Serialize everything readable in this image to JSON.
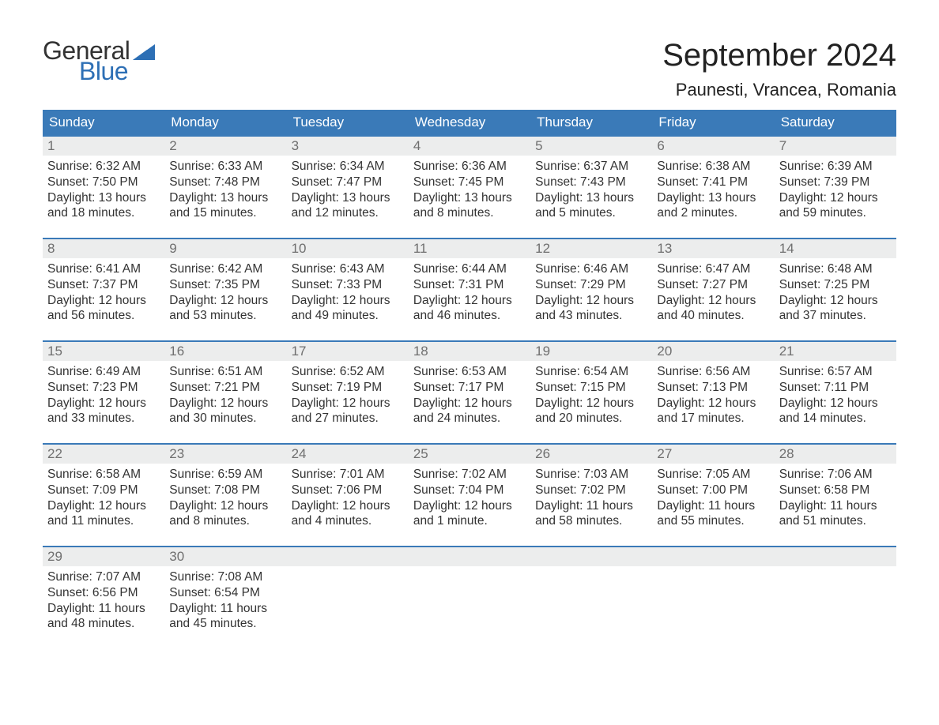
{
  "brand": {
    "general": "General",
    "blue": "Blue",
    "flag_color": "#2d6fb5"
  },
  "title": "September 2024",
  "location": "Paunesti, Vrancea, Romania",
  "colors": {
    "header_bg": "#3a7ab8",
    "header_text": "#ffffff",
    "daynum_bg": "#eceded",
    "daynum_text": "#6f6f6f",
    "body_text": "#333333",
    "row_border": "#3a7ab8",
    "page_bg": "#ffffff"
  },
  "weekdays": [
    "Sunday",
    "Monday",
    "Tuesday",
    "Wednesday",
    "Thursday",
    "Friday",
    "Saturday"
  ],
  "weeks": [
    [
      {
        "n": "1",
        "sunrise": "Sunrise: 6:32 AM",
        "sunset": "Sunset: 7:50 PM",
        "day1": "Daylight: 13 hours",
        "day2": "and 18 minutes."
      },
      {
        "n": "2",
        "sunrise": "Sunrise: 6:33 AM",
        "sunset": "Sunset: 7:48 PM",
        "day1": "Daylight: 13 hours",
        "day2": "and 15 minutes."
      },
      {
        "n": "3",
        "sunrise": "Sunrise: 6:34 AM",
        "sunset": "Sunset: 7:47 PM",
        "day1": "Daylight: 13 hours",
        "day2": "and 12 minutes."
      },
      {
        "n": "4",
        "sunrise": "Sunrise: 6:36 AM",
        "sunset": "Sunset: 7:45 PM",
        "day1": "Daylight: 13 hours",
        "day2": "and 8 minutes."
      },
      {
        "n": "5",
        "sunrise": "Sunrise: 6:37 AM",
        "sunset": "Sunset: 7:43 PM",
        "day1": "Daylight: 13 hours",
        "day2": "and 5 minutes."
      },
      {
        "n": "6",
        "sunrise": "Sunrise: 6:38 AM",
        "sunset": "Sunset: 7:41 PM",
        "day1": "Daylight: 13 hours",
        "day2": "and 2 minutes."
      },
      {
        "n": "7",
        "sunrise": "Sunrise: 6:39 AM",
        "sunset": "Sunset: 7:39 PM",
        "day1": "Daylight: 12 hours",
        "day2": "and 59 minutes."
      }
    ],
    [
      {
        "n": "8",
        "sunrise": "Sunrise: 6:41 AM",
        "sunset": "Sunset: 7:37 PM",
        "day1": "Daylight: 12 hours",
        "day2": "and 56 minutes."
      },
      {
        "n": "9",
        "sunrise": "Sunrise: 6:42 AM",
        "sunset": "Sunset: 7:35 PM",
        "day1": "Daylight: 12 hours",
        "day2": "and 53 minutes."
      },
      {
        "n": "10",
        "sunrise": "Sunrise: 6:43 AM",
        "sunset": "Sunset: 7:33 PM",
        "day1": "Daylight: 12 hours",
        "day2": "and 49 minutes."
      },
      {
        "n": "11",
        "sunrise": "Sunrise: 6:44 AM",
        "sunset": "Sunset: 7:31 PM",
        "day1": "Daylight: 12 hours",
        "day2": "and 46 minutes."
      },
      {
        "n": "12",
        "sunrise": "Sunrise: 6:46 AM",
        "sunset": "Sunset: 7:29 PM",
        "day1": "Daylight: 12 hours",
        "day2": "and 43 minutes."
      },
      {
        "n": "13",
        "sunrise": "Sunrise: 6:47 AM",
        "sunset": "Sunset: 7:27 PM",
        "day1": "Daylight: 12 hours",
        "day2": "and 40 minutes."
      },
      {
        "n": "14",
        "sunrise": "Sunrise: 6:48 AM",
        "sunset": "Sunset: 7:25 PM",
        "day1": "Daylight: 12 hours",
        "day2": "and 37 minutes."
      }
    ],
    [
      {
        "n": "15",
        "sunrise": "Sunrise: 6:49 AM",
        "sunset": "Sunset: 7:23 PM",
        "day1": "Daylight: 12 hours",
        "day2": "and 33 minutes."
      },
      {
        "n": "16",
        "sunrise": "Sunrise: 6:51 AM",
        "sunset": "Sunset: 7:21 PM",
        "day1": "Daylight: 12 hours",
        "day2": "and 30 minutes."
      },
      {
        "n": "17",
        "sunrise": "Sunrise: 6:52 AM",
        "sunset": "Sunset: 7:19 PM",
        "day1": "Daylight: 12 hours",
        "day2": "and 27 minutes."
      },
      {
        "n": "18",
        "sunrise": "Sunrise: 6:53 AM",
        "sunset": "Sunset: 7:17 PM",
        "day1": "Daylight: 12 hours",
        "day2": "and 24 minutes."
      },
      {
        "n": "19",
        "sunrise": "Sunrise: 6:54 AM",
        "sunset": "Sunset: 7:15 PM",
        "day1": "Daylight: 12 hours",
        "day2": "and 20 minutes."
      },
      {
        "n": "20",
        "sunrise": "Sunrise: 6:56 AM",
        "sunset": "Sunset: 7:13 PM",
        "day1": "Daylight: 12 hours",
        "day2": "and 17 minutes."
      },
      {
        "n": "21",
        "sunrise": "Sunrise: 6:57 AM",
        "sunset": "Sunset: 7:11 PM",
        "day1": "Daylight: 12 hours",
        "day2": "and 14 minutes."
      }
    ],
    [
      {
        "n": "22",
        "sunrise": "Sunrise: 6:58 AM",
        "sunset": "Sunset: 7:09 PM",
        "day1": "Daylight: 12 hours",
        "day2": "and 11 minutes."
      },
      {
        "n": "23",
        "sunrise": "Sunrise: 6:59 AM",
        "sunset": "Sunset: 7:08 PM",
        "day1": "Daylight: 12 hours",
        "day2": "and 8 minutes."
      },
      {
        "n": "24",
        "sunrise": "Sunrise: 7:01 AM",
        "sunset": "Sunset: 7:06 PM",
        "day1": "Daylight: 12 hours",
        "day2": "and 4 minutes."
      },
      {
        "n": "25",
        "sunrise": "Sunrise: 7:02 AM",
        "sunset": "Sunset: 7:04 PM",
        "day1": "Daylight: 12 hours",
        "day2": "and 1 minute."
      },
      {
        "n": "26",
        "sunrise": "Sunrise: 7:03 AM",
        "sunset": "Sunset: 7:02 PM",
        "day1": "Daylight: 11 hours",
        "day2": "and 58 minutes."
      },
      {
        "n": "27",
        "sunrise": "Sunrise: 7:05 AM",
        "sunset": "Sunset: 7:00 PM",
        "day1": "Daylight: 11 hours",
        "day2": "and 55 minutes."
      },
      {
        "n": "28",
        "sunrise": "Sunrise: 7:06 AM",
        "sunset": "Sunset: 6:58 PM",
        "day1": "Daylight: 11 hours",
        "day2": "and 51 minutes."
      }
    ],
    [
      {
        "n": "29",
        "sunrise": "Sunrise: 7:07 AM",
        "sunset": "Sunset: 6:56 PM",
        "day1": "Daylight: 11 hours",
        "day2": "and 48 minutes."
      },
      {
        "n": "30",
        "sunrise": "Sunrise: 7:08 AM",
        "sunset": "Sunset: 6:54 PM",
        "day1": "Daylight: 11 hours",
        "day2": "and 45 minutes."
      },
      {
        "empty": true
      },
      {
        "empty": true
      },
      {
        "empty": true
      },
      {
        "empty": true
      },
      {
        "empty": true
      }
    ]
  ]
}
